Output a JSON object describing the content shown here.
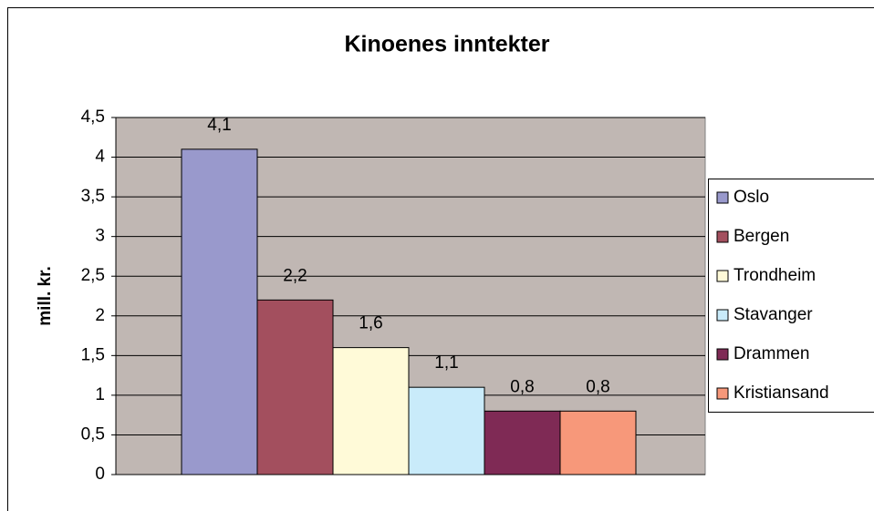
{
  "chart_data": {
    "type": "bar",
    "title": "Kinoenes inntekter",
    "y_label": "mill. kr.",
    "categories": [
      null
    ],
    "series": [
      {
        "name": "Oslo",
        "color": "#9999cc",
        "values": [
          4.1
        ],
        "value_labels": [
          "4,1"
        ]
      },
      {
        "name": "Bergen",
        "color": "#a34f5e",
        "values": [
          2.2
        ],
        "value_labels": [
          "2,2"
        ]
      },
      {
        "name": "Trondheim",
        "color": "#fffad8",
        "values": [
          1.6
        ],
        "value_labels": [
          "1,6"
        ]
      },
      {
        "name": "Stavanger",
        "color": "#c9ebfa",
        "values": [
          1.1
        ],
        "value_labels": [
          "1,1"
        ]
      },
      {
        "name": "Drammen",
        "color": "#7f2a55",
        "values": [
          0.8
        ],
        "value_labels": [
          "0,8"
        ]
      },
      {
        "name": "Kristiansand",
        "color": "#f7987a",
        "values": [
          0.8
        ],
        "value_labels": [
          "0,8"
        ]
      }
    ],
    "ylim": [
      0,
      4.5
    ],
    "yticks": [
      0,
      {
        "value": 0.5,
        "label": "0,5"
      },
      1,
      {
        "value": 1.5,
        "label": "1,5"
      },
      2,
      {
        "value": 2.5,
        "label": "2,5"
      },
      3,
      {
        "value": 3.5,
        "label": "3,5"
      },
      4,
      {
        "value": 4.5,
        "label": "4,5"
      }
    ],
    "grid": true,
    "plot_background": "#c0b7b3",
    "legend": "right"
  }
}
